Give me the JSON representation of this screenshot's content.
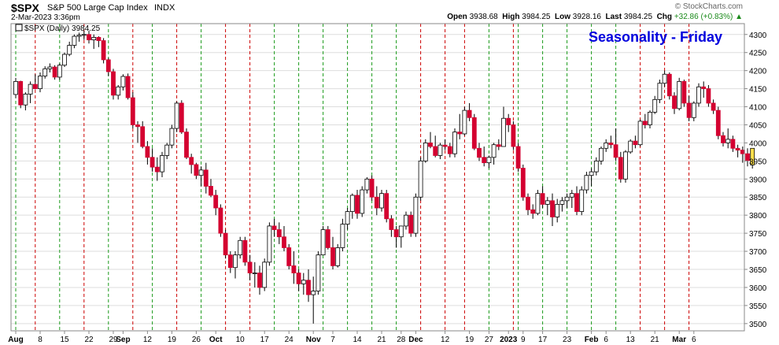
{
  "header": {
    "symbol": "$SPX",
    "name": "S&P 500 Large Cap Index",
    "exchange": "INDX",
    "timestamp": "2-Mar-2023 3:36pm",
    "watermark": "© StockCharts.com",
    "open_label": "Open",
    "open": "3938.68",
    "high_label": "High",
    "high": "3984.25",
    "low_label": "Low",
    "low": "3928.16",
    "last_label": "Last",
    "last": "3984.25",
    "chg_label": "Chg",
    "chg": "+32.86 (+0.83%)",
    "chg_arrow": "▲"
  },
  "legend_text": "$SPX (Daily) 3984.25",
  "chart_data": {
    "type": "candlestick",
    "title": "Seasonality - Friday",
    "ylim": [
      3480,
      4330
    ],
    "yticks": [
      3500,
      3550,
      3600,
      3650,
      3700,
      3750,
      3800,
      3850,
      3900,
      3950,
      4000,
      4050,
      4100,
      4150,
      4200,
      4250,
      4300
    ],
    "xtick_labels": [
      {
        "i": 0,
        "label": "Aug",
        "bold": true
      },
      {
        "i": 5,
        "label": "8"
      },
      {
        "i": 10,
        "label": "15"
      },
      {
        "i": 15,
        "label": "22"
      },
      {
        "i": 20,
        "label": "29"
      },
      {
        "i": 22,
        "label": "Sep",
        "bold": true
      },
      {
        "i": 27,
        "label": "12"
      },
      {
        "i": 32,
        "label": "19"
      },
      {
        "i": 37,
        "label": "26"
      },
      {
        "i": 41,
        "label": "Oct",
        "bold": true
      },
      {
        "i": 46,
        "label": "10"
      },
      {
        "i": 51,
        "label": "17"
      },
      {
        "i": 56,
        "label": "24"
      },
      {
        "i": 61,
        "label": "Nov",
        "bold": true
      },
      {
        "i": 65,
        "label": "7"
      },
      {
        "i": 70,
        "label": "14"
      },
      {
        "i": 75,
        "label": "21"
      },
      {
        "i": 79,
        "label": "28"
      },
      {
        "i": 82,
        "label": "Dec",
        "bold": true
      },
      {
        "i": 88,
        "label": "12"
      },
      {
        "i": 93,
        "label": "19"
      },
      {
        "i": 97,
        "label": "27"
      },
      {
        "i": 101,
        "label": "2023",
        "bold": true
      },
      {
        "i": 104,
        "label": "9"
      },
      {
        "i": 108,
        "label": "17"
      },
      {
        "i": 113,
        "label": "23"
      },
      {
        "i": 118,
        "label": "Feb",
        "bold": true
      },
      {
        "i": 121,
        "label": "6"
      },
      {
        "i": 126,
        "label": "13"
      },
      {
        "i": 131,
        "label": "21"
      },
      {
        "i": 136,
        "label": "Mar",
        "bold": true
      },
      {
        "i": 139,
        "label": "6"
      }
    ],
    "fridays_up": [
      0,
      9,
      19,
      28,
      38,
      53,
      58,
      63,
      68,
      73,
      78,
      97,
      103,
      108,
      113,
      118,
      123
    ],
    "fridays_down": [
      4,
      14,
      24,
      33,
      43,
      48,
      83,
      88,
      92,
      102,
      128,
      133,
      138
    ],
    "colors": {
      "up": "#ffffff",
      "down": "#d40030",
      "grid": "#dddddd",
      "friday_up": "#1a9a1a",
      "friday_down": "#cc0000",
      "current": "#ffe14d",
      "title": "#0000dd"
    },
    "candles": [
      [
        4134,
        4180,
        4124,
        4170
      ],
      [
        4170,
        4172,
        4096,
        4105
      ],
      [
        4105,
        4140,
        4090,
        4135
      ],
      [
        4135,
        4170,
        4110,
        4162
      ],
      [
        4162,
        4190,
        4148,
        4150
      ],
      [
        4150,
        4195,
        4140,
        4185
      ],
      [
        4185,
        4212,
        4178,
        4205
      ],
      [
        4205,
        4220,
        4195,
        4210
      ],
      [
        4210,
        4215,
        4175,
        4182
      ],
      [
        4182,
        4220,
        4175,
        4215
      ],
      [
        4215,
        4250,
        4210,
        4245
      ],
      [
        4245,
        4280,
        4240,
        4270
      ],
      [
        4270,
        4300,
        4262,
        4295
      ],
      [
        4295,
        4305,
        4280,
        4298
      ],
      [
        4298,
        4310,
        4285,
        4300
      ],
      [
        4300,
        4310,
        4275,
        4285
      ],
      [
        4285,
        4300,
        4260,
        4292
      ],
      [
        4292,
        4295,
        4265,
        4283
      ],
      [
        4283,
        4290,
        4220,
        4230
      ],
      [
        4230,
        4235,
        4185,
        4197
      ],
      [
        4197,
        4205,
        4120,
        4132
      ],
      [
        4132,
        4160,
        4120,
        4155
      ],
      [
        4155,
        4190,
        4145,
        4184
      ],
      [
        4184,
        4192,
        4120,
        4125
      ],
      [
        4125,
        4140,
        4040,
        4050
      ],
      [
        4050,
        4060,
        4000,
        4045
      ],
      [
        4045,
        4060,
        3985,
        3990
      ],
      [
        3990,
        4005,
        3940,
        3960
      ],
      [
        3960,
        3985,
        3920,
        3933
      ],
      [
        3933,
        3960,
        3895,
        3920
      ],
      [
        3920,
        3975,
        3905,
        3965
      ],
      [
        3965,
        4000,
        3955,
        3994
      ],
      [
        3994,
        4050,
        3985,
        4040
      ],
      [
        4040,
        4115,
        4030,
        4110
      ],
      [
        4110,
        4118,
        4025,
        4030
      ],
      [
        4030,
        4040,
        3955,
        3960
      ],
      [
        3960,
        3970,
        3915,
        3940
      ],
      [
        3940,
        3945,
        3900,
        3910
      ],
      [
        3910,
        3935,
        3880,
        3925
      ],
      [
        3925,
        3945,
        3860,
        3880
      ],
      [
        3880,
        3900,
        3850,
        3855
      ],
      [
        3855,
        3870,
        3800,
        3820
      ],
      [
        3820,
        3830,
        3740,
        3750
      ],
      [
        3750,
        3760,
        3680,
        3690
      ],
      [
        3690,
        3700,
        3640,
        3655
      ],
      [
        3655,
        3700,
        3625,
        3690
      ],
      [
        3690,
        3740,
        3680,
        3730
      ],
      [
        3730,
        3740,
        3660,
        3670
      ],
      [
        3670,
        3690,
        3620,
        3640
      ],
      [
        3640,
        3670,
        3600,
        3640
      ],
      [
        3640,
        3660,
        3580,
        3600
      ],
      [
        3600,
        3680,
        3590,
        3670
      ],
      [
        3670,
        3780,
        3660,
        3770
      ],
      [
        3770,
        3790,
        3740,
        3760
      ],
      [
        3760,
        3780,
        3720,
        3740
      ],
      [
        3740,
        3770,
        3700,
        3710
      ],
      [
        3710,
        3720,
        3650,
        3660
      ],
      [
        3660,
        3700,
        3610,
        3640
      ],
      [
        3640,
        3650,
        3590,
        3610
      ],
      [
        3610,
        3640,
        3580,
        3620
      ],
      [
        3620,
        3650,
        3560,
        3580
      ],
      [
        3580,
        3630,
        3500,
        3590
      ],
      [
        3590,
        3700,
        3580,
        3690
      ],
      [
        3690,
        3770,
        3690,
        3760
      ],
      [
        3760,
        3770,
        3705,
        3710
      ],
      [
        3710,
        3740,
        3650,
        3660
      ],
      [
        3660,
        3720,
        3655,
        3710
      ],
      [
        3710,
        3790,
        3700,
        3775
      ],
      [
        3775,
        3820,
        3760,
        3810
      ],
      [
        3810,
        3860,
        3790,
        3855
      ],
      [
        3855,
        3870,
        3790,
        3805
      ],
      [
        3805,
        3880,
        3795,
        3870
      ],
      [
        3870,
        3905,
        3860,
        3900
      ],
      [
        3900,
        3910,
        3840,
        3850
      ],
      [
        3850,
        3880,
        3800,
        3820
      ],
      [
        3820,
        3870,
        3810,
        3860
      ],
      [
        3860,
        3870,
        3780,
        3790
      ],
      [
        3790,
        3800,
        3740,
        3760
      ],
      [
        3760,
        3770,
        3710,
        3740
      ],
      [
        3740,
        3770,
        3710,
        3770
      ],
      [
        3770,
        3810,
        3760,
        3800
      ],
      [
        3800,
        3810,
        3740,
        3750
      ],
      [
        3750,
        3860,
        3740,
        3850
      ],
      [
        3850,
        3960,
        3840,
        3950
      ],
      [
        3950,
        4010,
        3945,
        4000
      ],
      [
        4000,
        4030,
        3985,
        3990
      ],
      [
        3990,
        4020,
        3960,
        3965
      ],
      [
        3965,
        4000,
        3955,
        3994
      ],
      [
        3994,
        4010,
        3980,
        3990
      ],
      [
        3990,
        4000,
        3960,
        3970
      ],
      [
        3970,
        4040,
        3960,
        4030
      ],
      [
        4030,
        4080,
        4010,
        4025
      ],
      [
        4025,
        4100,
        4020,
        4090
      ],
      [
        4090,
        4110,
        4060,
        4070
      ],
      [
        4070,
        4080,
        3980,
        3985
      ],
      [
        3985,
        4000,
        3950,
        3960
      ],
      [
        3960,
        3990,
        3935,
        3945
      ],
      [
        3945,
        3965,
        3930,
        3960
      ],
      [
        3960,
        4000,
        3940,
        3995
      ],
      [
        3995,
        4010,
        3980,
        3990
      ],
      [
        3990,
        4100,
        3990,
        4068
      ],
      [
        4068,
        4080,
        4030,
        4050
      ],
      [
        4050,
        4060,
        3980,
        3990
      ],
      [
        3990,
        4000,
        3920,
        3930
      ],
      [
        3930,
        3940,
        3840,
        3850
      ],
      [
        3850,
        3860,
        3800,
        3815
      ],
      [
        3815,
        3830,
        3790,
        3805
      ],
      [
        3805,
        3870,
        3800,
        3860
      ],
      [
        3860,
        3880,
        3820,
        3830
      ],
      [
        3830,
        3850,
        3800,
        3840
      ],
      [
        3840,
        3860,
        3770,
        3795
      ],
      [
        3795,
        3845,
        3780,
        3830
      ],
      [
        3830,
        3850,
        3810,
        3840
      ],
      [
        3840,
        3860,
        3820,
        3850
      ],
      [
        3850,
        3870,
        3820,
        3860
      ],
      [
        3860,
        3880,
        3800,
        3810
      ],
      [
        3810,
        3880,
        3800,
        3870
      ],
      [
        3870,
        3920,
        3860,
        3910
      ],
      [
        3910,
        3930,
        3880,
        3920
      ],
      [
        3920,
        3960,
        3910,
        3950
      ],
      [
        3950,
        3990,
        3940,
        3985
      ],
      [
        3985,
        4010,
        3975,
        4000
      ],
      [
        4000,
        4020,
        3985,
        3995
      ],
      [
        3995,
        4040,
        3950,
        3960
      ],
      [
        3960,
        3975,
        3890,
        3900
      ],
      [
        3900,
        3980,
        3890,
        3975
      ],
      [
        3975,
        4010,
        3970,
        4005
      ],
      [
        4005,
        4020,
        3985,
        3995
      ],
      [
        3995,
        4065,
        3990,
        4060
      ],
      [
        4060,
        4080,
        4040,
        4050
      ],
      [
        4050,
        4090,
        4040,
        4085
      ],
      [
        4085,
        4130,
        4080,
        4120
      ],
      [
        4120,
        4175,
        4110,
        4165
      ],
      [
        4165,
        4200,
        4155,
        4190
      ],
      [
        4190,
        4195,
        4120,
        4130
      ],
      [
        4130,
        4140,
        4080,
        4095
      ],
      [
        4095,
        4180,
        4090,
        4170
      ],
      [
        4170,
        4175,
        4100,
        4110
      ],
      [
        4110,
        4130,
        4060,
        4070
      ],
      [
        4070,
        4115,
        4060,
        4110
      ],
      [
        4110,
        4165,
        4100,
        4155
      ],
      [
        4155,
        4170,
        4125,
        4150
      ],
      [
        4150,
        4160,
        4100,
        4110
      ],
      [
        4110,
        4120,
        4080,
        4090
      ],
      [
        4090,
        4100,
        4010,
        4020
      ],
      [
        4020,
        4030,
        3990,
        4000
      ],
      [
        4000,
        4040,
        3985,
        4010
      ],
      [
        4010,
        4020,
        3975,
        3985
      ],
      [
        3985,
        3995,
        3960,
        3980
      ],
      [
        3980,
        3990,
        3945,
        3970
      ],
      [
        3970,
        3985,
        3935,
        3951
      ],
      [
        3939,
        3985,
        3929,
        3985
      ]
    ]
  }
}
